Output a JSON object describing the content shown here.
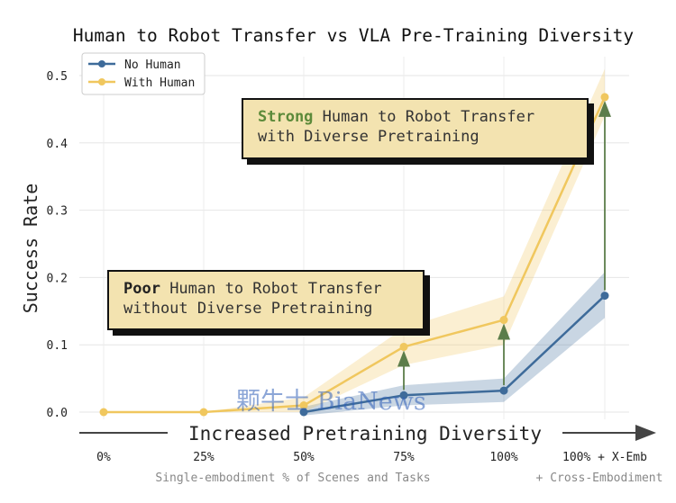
{
  "chart_data": {
    "type": "line",
    "title": "Human to Robot Transfer vs VLA Pre-Training Diversity",
    "ylabel": "Success Rate",
    "xlabel": "Increased Pretraining Diversity",
    "categories": [
      "0%",
      "25%",
      "50%",
      "75%",
      "100%",
      "100% + X-Emb"
    ],
    "ylim": [
      0,
      0.5
    ],
    "yticks": [
      "0.0",
      "0.1",
      "0.2",
      "0.3",
      "0.4",
      "0.5"
    ],
    "grid": true,
    "legend_position": "top-left",
    "subtitle_left": "Single-embodiment % of Scenes and Tasks",
    "subtitle_right": "+ Cross-Embodiment",
    "series": [
      {
        "name": "No Human",
        "color": "#3e6b9a",
        "values": [
          null,
          null,
          0.0,
          0.025,
          0.032,
          0.173
        ],
        "band_low": [
          null,
          null,
          -0.005,
          0.01,
          0.015,
          0.14
        ],
        "band_high": [
          null,
          null,
          0.008,
          0.04,
          0.05,
          0.208
        ]
      },
      {
        "name": "With Human",
        "color": "#f0c75e",
        "values": [
          0.0,
          0.0,
          0.01,
          0.097,
          0.137,
          0.468
        ],
        "band_low": [
          0.0,
          0.0,
          0.0,
          0.07,
          0.1,
          0.44
        ],
        "band_high": [
          0.0,
          0.0,
          0.022,
          0.125,
          0.172,
          0.51
        ]
      }
    ],
    "annotations": [
      {
        "parts": [
          {
            "text": "Strong",
            "style": "good"
          },
          {
            "text": " Human to Robot Transfer",
            "style": "plain"
          }
        ],
        "line2": "with Diverse Pretraining"
      },
      {
        "parts": [
          {
            "text": "Poor",
            "style": "bad"
          },
          {
            "text": " Human to Robot Transfer",
            "style": "plain"
          }
        ],
        "line2": "without Diverse Pretraining"
      }
    ],
    "arrows": [
      {
        "category_index": 3,
        "from": 0.025,
        "to": 0.097
      },
      {
        "category_index": 4,
        "from": 0.032,
        "to": 0.137
      },
      {
        "category_index": 5,
        "from": 0.173,
        "to": 0.468
      }
    ],
    "arrow_color": "#5c7d4a"
  },
  "watermark": "颗牛士 BiaNews"
}
